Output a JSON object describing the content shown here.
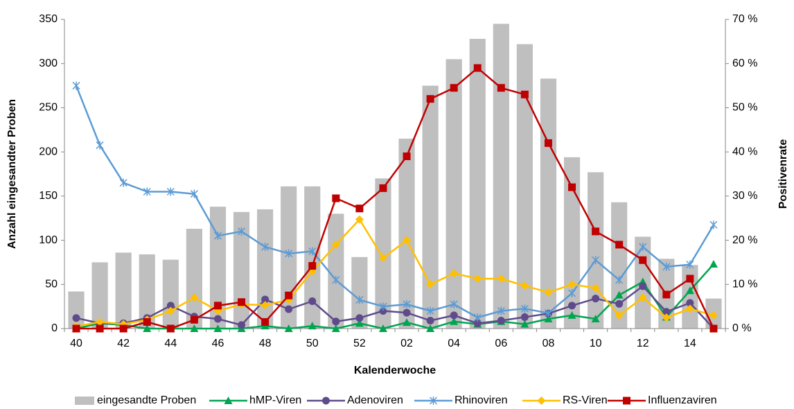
{
  "chart_data": {
    "type": "bar-line",
    "x_label": "Kalenderwoche",
    "y_label": "Anzahl eingesandter Proben",
    "y2_label": "Positivenrate",
    "categories": [
      "40",
      null,
      "42",
      null,
      "44",
      null,
      "46",
      null,
      "48",
      null,
      "50",
      null,
      "52",
      null,
      "02",
      null,
      "04",
      null,
      "06",
      null,
      "08",
      null,
      "10",
      null,
      "12",
      null,
      "14",
      null
    ],
    "ylim": [
      0,
      350
    ],
    "yticks": [
      0,
      50,
      100,
      150,
      200,
      250,
      300,
      350
    ],
    "y2lim": [
      0,
      70
    ],
    "y2ticks": [
      {
        "value": 0,
        "label": "0 %"
      },
      {
        "value": 10,
        "label": "10 %"
      },
      {
        "value": 20,
        "label": "20 %"
      },
      {
        "value": 30,
        "label": "30 %"
      },
      {
        "value": 40,
        "label": "40 %"
      },
      {
        "value": 50,
        "label": "50 %"
      },
      {
        "value": 60,
        "label": "60 %"
      },
      {
        "value": 70,
        "label": "70 %"
      }
    ],
    "series": [
      {
        "name": "eingesandte Proben",
        "type": "bar",
        "color": "#bfbfbf",
        "values": [
          42,
          75,
          86,
          84,
          78,
          113,
          138,
          132,
          135,
          161,
          161,
          130,
          81,
          170,
          215,
          275,
          305,
          328,
          345,
          322,
          283,
          194,
          177,
          143,
          104,
          79,
          72,
          34
        ]
      },
      {
        "name": "hMP-Viren",
        "type": "line",
        "axis": "y2",
        "marker": "triangle",
        "color": "#00a550",
        "values": [
          0,
          1.2,
          0.8,
          0,
          0,
          0,
          0,
          0,
          0.6,
          0,
          0.6,
          0,
          1.2,
          0,
          1.4,
          0,
          1.6,
          1,
          1.6,
          1,
          2.2,
          3,
          2.2,
          7.6,
          10.6,
          2.6,
          8.6,
          14.6
        ]
      },
      {
        "name": "Adenoviren",
        "type": "line",
        "axis": "y2",
        "marker": "circle",
        "color": "#5f4b8b",
        "values": [
          2.4,
          1.2,
          1.2,
          2.4,
          5.2,
          2.7,
          2.2,
          0.8,
          6.6,
          4.4,
          6.2,
          1.6,
          2.4,
          4,
          3.6,
          1.8,
          3,
          1.2,
          1.8,
          2.6,
          3.4,
          5.2,
          6.8,
          5.6,
          9.6,
          3.8,
          5.8,
          0
        ]
      },
      {
        "name": "Rhinoviren",
        "type": "line",
        "axis": "y2",
        "marker": "star",
        "color": "#5b9bd5",
        "values": [
          55,
          41.5,
          33,
          31,
          31,
          30.5,
          21,
          22,
          18.5,
          17,
          17.5,
          11,
          6.5,
          5,
          5.5,
          4,
          5.5,
          2.5,
          4,
          4.5,
          3.5,
          8,
          15.5,
          11,
          18.5,
          14,
          14.5,
          23.5
        ]
      },
      {
        "name": "RS-Viren",
        "type": "line",
        "axis": "y2",
        "marker": "diamond",
        "color": "#ffc000",
        "values": [
          0.5,
          1.5,
          1,
          2,
          4,
          7,
          4,
          5.5,
          5.3,
          6.5,
          13,
          19,
          24.7,
          16,
          20,
          10,
          12.5,
          11.3,
          11.3,
          9.7,
          8.2,
          10,
          9.2,
          3,
          7,
          2.5,
          4.5,
          3
        ]
      },
      {
        "name": "Influenzaviren",
        "type": "line",
        "axis": "y2",
        "marker": "square",
        "color": "#c00000",
        "values": [
          0,
          0,
          0,
          1.5,
          0,
          2,
          5.2,
          6,
          1.5,
          7.5,
          14.2,
          29.5,
          27.2,
          31.8,
          39,
          52,
          54.5,
          59,
          54.5,
          53,
          42,
          32,
          22,
          19,
          15.5,
          7.7,
          11.3,
          0
        ]
      }
    ]
  }
}
